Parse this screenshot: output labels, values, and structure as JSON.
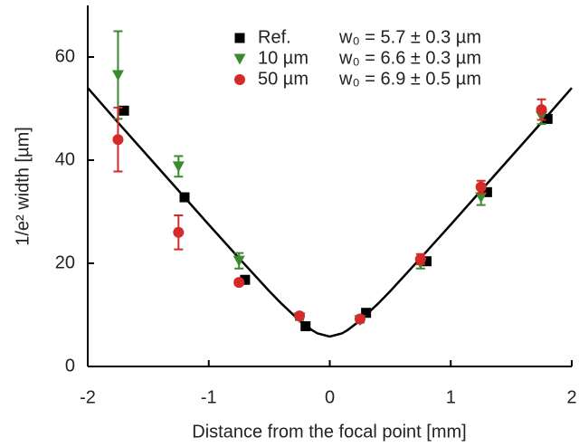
{
  "chart_data": {
    "type": "scatter",
    "x_label": "Distance from the focal point [mm]",
    "y_label": "1/e² width [µm]",
    "xlim": [
      -2,
      2
    ],
    "xticks": [
      -2,
      -1,
      0,
      1,
      2
    ],
    "ylim": [
      0,
      70
    ],
    "yticks": [
      0,
      20,
      40,
      60
    ],
    "legend": "upper right",
    "series": [
      {
        "name": "Ref.",
        "annotation": "w₀ = 5.7 ± 0.3 µm",
        "color": "#000000",
        "marker": "square",
        "x": [
          -1.7,
          -1.2,
          -0.7,
          -0.2,
          0.3,
          0.8,
          1.3,
          1.8
        ],
        "values": [
          49.6,
          32.8,
          16.8,
          7.8,
          10.4,
          20.4,
          33.8,
          48
        ]
      },
      {
        "name": "10 µm",
        "annotation": "w₀ = 6.6 ± 0.3 µm",
        "color": "#3a8a2e",
        "marker": "triangle-down",
        "x": [
          -1.75,
          -1.25,
          -0.75,
          -0.25,
          0.25,
          0.75,
          1.25,
          1.75
        ],
        "values": [
          56.5,
          38.8,
          20.5,
          9.5,
          9,
          20,
          32.8,
          48.5
        ],
        "errors": [
          8.5,
          2,
          1.5,
          0.5,
          0.5,
          1,
          1.5,
          1.5
        ]
      },
      {
        "name": "50 µm",
        "annotation": "w₀ = 6.9 ± 0.5 µm",
        "color": "#d42a2a",
        "marker": "circle",
        "x": [
          -1.75,
          -1.25,
          -0.75,
          -0.25,
          0.25,
          0.75,
          1.25,
          1.75
        ],
        "values": [
          44,
          26,
          16.3,
          9.8,
          9.2,
          20.8,
          34.8,
          49.8
        ],
        "errors": [
          6.2,
          3.3,
          0.5,
          0.5,
          0.5,
          1,
          1.2,
          2
        ]
      }
    ],
    "fit": {
      "color": "#000000",
      "x": [
        -2,
        -1.75,
        -1.5,
        -1.25,
        -1,
        -0.75,
        -0.5,
        -0.4,
        -0.25,
        -0.15,
        -0.1,
        0,
        0.1,
        0.15,
        0.25,
        0.4,
        0.5,
        0.75,
        1,
        1.25,
        1.5,
        1.75,
        2
      ],
      "values": [
        54.0,
        47.3,
        40.7,
        34.1,
        27.5,
        21.0,
        14.6,
        12.2,
        8.9,
        7.1,
        6.4,
        5.8,
        6.4,
        7.1,
        8.9,
        12.2,
        14.6,
        21.0,
        27.5,
        34.1,
        40.7,
        47.3,
        54.0
      ]
    }
  }
}
